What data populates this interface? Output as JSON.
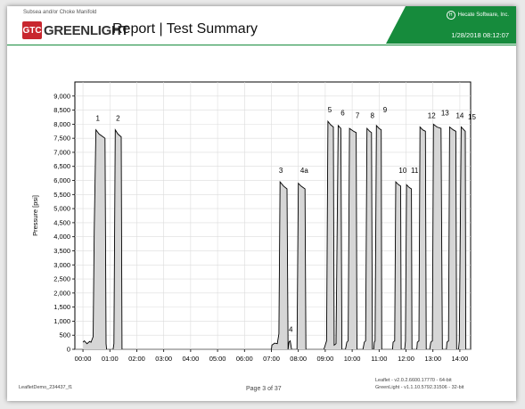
{
  "header": {
    "subtitle": "Subsea and/or Choke Manifold",
    "logo_badge": "GTC",
    "logo_text": "GREENLIGHT",
    "title": "Report  | Test Summary",
    "company": "Hecate Software, Inc.",
    "company_icon": "H",
    "datetime": "1/28/2018 08:12:07",
    "colors": {
      "band": "#168b3c",
      "badge": "#c8262e"
    }
  },
  "footer": {
    "left": "LeafletDemo_234437_f1",
    "page": "Page 3 of 37",
    "version_line1": "Leaflet - v2.0.2.6600.17770 - 64-bit",
    "version_line2": "GreenLight - v1.1.10.5792.31506 - 32-bit"
  },
  "chart_data": {
    "type": "area",
    "ylabel": "Pressure [psi]",
    "xlabel": "",
    "ylim": [
      0,
      9500
    ],
    "xlim": [
      -0.3,
      14.4
    ],
    "yticks": [
      "0",
      "500",
      "1,000",
      "1,500",
      "2,000",
      "2,500",
      "3,000",
      "3,500",
      "4,000",
      "4,500",
      "5,000",
      "5,500",
      "6,000",
      "6,500",
      "7,000",
      "7,500",
      "8,000",
      "8,500",
      "9,000"
    ],
    "xticks": [
      "00:00",
      "01:00",
      "02:00",
      "03:00",
      "04:00",
      "05:00",
      "06:00",
      "07:00",
      "08:00",
      "09:00",
      "10:00",
      "11:00",
      "12:00",
      "13:00",
      "14:00"
    ],
    "grid": true,
    "fill_color": "#d6d6d6",
    "line_color": "#000000",
    "series": [
      {
        "points": [
          [
            0.0,
            250
          ],
          [
            0.05,
            300
          ],
          [
            0.15,
            200
          ],
          [
            0.25,
            280
          ],
          [
            0.3,
            250
          ],
          [
            0.38,
            450
          ],
          [
            0.42,
            4200
          ],
          [
            0.48,
            7800
          ],
          [
            0.6,
            7650
          ],
          [
            0.75,
            7550
          ],
          [
            0.82,
            7500
          ],
          [
            0.84,
            4000
          ],
          [
            0.86,
            200
          ],
          [
            0.88,
            0
          ]
        ]
      },
      {
        "points": [
          [
            1.12,
            0
          ],
          [
            1.15,
            200
          ],
          [
            1.2,
            7800
          ],
          [
            1.3,
            7650
          ],
          [
            1.42,
            7550
          ],
          [
            1.45,
            0
          ]
        ]
      },
      {
        "points": [
          [
            7.0,
            0
          ],
          [
            7.02,
            150
          ],
          [
            7.12,
            220
          ],
          [
            7.22,
            200
          ],
          [
            7.28,
            550
          ],
          [
            7.32,
            5950
          ],
          [
            7.45,
            5800
          ],
          [
            7.58,
            5700
          ],
          [
            7.62,
            0
          ]
        ]
      },
      {
        "points": [
          [
            7.62,
            0
          ],
          [
            7.65,
            250
          ],
          [
            7.7,
            300
          ],
          [
            7.75,
            0
          ]
        ]
      },
      {
        "points": [
          [
            7.95,
            0
          ],
          [
            8.0,
            5900
          ],
          [
            8.1,
            5800
          ],
          [
            8.25,
            5700
          ],
          [
            8.28,
            0
          ]
        ]
      },
      {
        "points": [
          [
            8.95,
            0
          ],
          [
            9.0,
            150
          ],
          [
            9.05,
            300
          ],
          [
            9.1,
            8100
          ],
          [
            9.2,
            7980
          ],
          [
            9.3,
            7900
          ],
          [
            9.33,
            150
          ],
          [
            9.4,
            200
          ],
          [
            9.48,
            7950
          ],
          [
            9.58,
            7850
          ],
          [
            9.62,
            0
          ]
        ]
      },
      {
        "points": [
          [
            9.75,
            0
          ],
          [
            9.8,
            250
          ],
          [
            9.85,
            300
          ],
          [
            9.9,
            7850
          ],
          [
            10.05,
            7750
          ],
          [
            10.15,
            7700
          ],
          [
            10.18,
            0
          ]
        ]
      },
      {
        "points": [
          [
            10.4,
            0
          ],
          [
            10.45,
            250
          ],
          [
            10.5,
            300
          ],
          [
            10.55,
            7850
          ],
          [
            10.65,
            7750
          ],
          [
            10.72,
            7700
          ],
          [
            10.75,
            0
          ]
        ]
      },
      {
        "points": [
          [
            10.8,
            0
          ],
          [
            10.82,
            250
          ],
          [
            10.85,
            300
          ],
          [
            10.9,
            7950
          ],
          [
            11.0,
            7850
          ],
          [
            11.08,
            7800
          ],
          [
            11.1,
            0
          ]
        ]
      },
      {
        "points": [
          [
            11.5,
            0
          ],
          [
            11.52,
            250
          ],
          [
            11.58,
            300
          ],
          [
            11.62,
            5950
          ],
          [
            11.72,
            5850
          ],
          [
            11.8,
            5800
          ],
          [
            11.82,
            0
          ]
        ]
      },
      {
        "points": [
          [
            11.95,
            0
          ],
          [
            11.98,
            300
          ],
          [
            12.02,
            5850
          ],
          [
            12.12,
            5750
          ],
          [
            12.2,
            5700
          ],
          [
            12.22,
            0
          ]
        ]
      },
      {
        "points": [
          [
            12.4,
            0
          ],
          [
            12.42,
            250
          ],
          [
            12.48,
            300
          ],
          [
            12.52,
            7900
          ],
          [
            12.62,
            7800
          ],
          [
            12.72,
            7750
          ],
          [
            12.75,
            0
          ]
        ]
      },
      {
        "points": [
          [
            12.88,
            0
          ],
          [
            12.92,
            250
          ],
          [
            12.98,
            300
          ],
          [
            13.02,
            8000
          ],
          [
            13.15,
            7900
          ],
          [
            13.3,
            7850
          ],
          [
            13.35,
            0
          ]
        ]
      },
      {
        "points": [
          [
            13.5,
            0
          ],
          [
            13.52,
            250
          ],
          [
            13.58,
            300
          ],
          [
            13.62,
            7900
          ],
          [
            13.75,
            7800
          ],
          [
            13.85,
            7750
          ],
          [
            13.88,
            0
          ]
        ]
      },
      {
        "points": [
          [
            13.95,
            0
          ],
          [
            13.98,
            300
          ],
          [
            14.05,
            7900
          ],
          [
            14.15,
            7800
          ],
          [
            14.2,
            7750
          ],
          [
            14.22,
            0
          ]
        ]
      }
    ],
    "annotations": [
      {
        "text": "1",
        "x": 0.55,
        "y": 8120
      },
      {
        "text": "2",
        "x": 1.3,
        "y": 8120
      },
      {
        "text": "3",
        "x": 7.35,
        "y": 6270
      },
      {
        "text": "4",
        "x": 7.72,
        "y": 620
      },
      {
        "text": "4a",
        "x": 8.22,
        "y": 6270
      },
      {
        "text": "5",
        "x": 9.17,
        "y": 8420
      },
      {
        "text": "6",
        "x": 9.65,
        "y": 8320
      },
      {
        "text": "7",
        "x": 10.2,
        "y": 8220
      },
      {
        "text": "8",
        "x": 10.75,
        "y": 8220
      },
      {
        "text": "9",
        "x": 11.22,
        "y": 8420
      },
      {
        "text": "10",
        "x": 11.88,
        "y": 6270
      },
      {
        "text": "11",
        "x": 12.32,
        "y": 6270
      },
      {
        "text": "12",
        "x": 12.95,
        "y": 8220
      },
      {
        "text": "13",
        "x": 13.45,
        "y": 8320
      },
      {
        "text": "14",
        "x": 14.0,
        "y": 8220
      },
      {
        "text": "15",
        "x": 14.45,
        "y": 8170
      }
    ]
  }
}
